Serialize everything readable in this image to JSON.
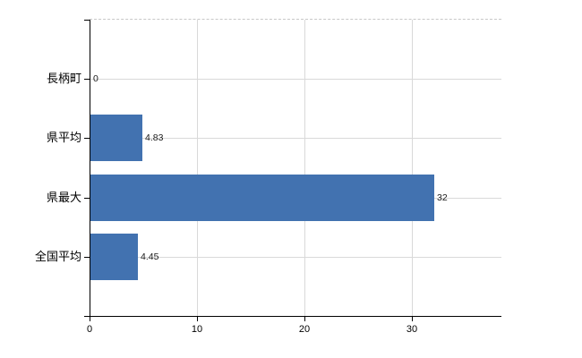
{
  "chart_data": {
    "type": "bar",
    "orientation": "horizontal",
    "categories": [
      "長柄町",
      "県平均",
      "県最大",
      "全国平均"
    ],
    "values": [
      0,
      4.83,
      32,
      4.45
    ],
    "value_labels": [
      "0",
      "4.83",
      "32",
      "4.45"
    ],
    "x_tick_labels": [
      "0",
      "10",
      "20",
      "30"
    ],
    "x_tick_values": [
      0,
      10,
      20,
      30
    ],
    "xlim": [
      0,
      38.3
    ],
    "grid": true,
    "legend_position": "none",
    "title": ""
  },
  "colors": {
    "bar": "#4272B0",
    "grid": "#d9d9d9",
    "axis": "#000000",
    "plot_border_top": "#c8c8c8",
    "text": "#000000",
    "background": "#ffffff"
  }
}
